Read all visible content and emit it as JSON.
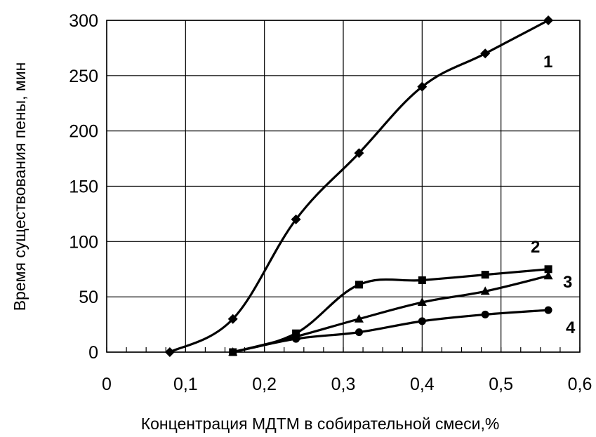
{
  "chart_data": {
    "type": "line",
    "title": "",
    "xlabel": "Концентрация МДТМ в собирательной смеси,%",
    "ylabel": "Время существования пены, мин",
    "xlim": [
      0,
      0.6
    ],
    "ylim": [
      0,
      300
    ],
    "x_ticks": [
      "0",
      "0,1",
      "0,2",
      "0,3",
      "0,4",
      "0,5",
      "0,6"
    ],
    "y_ticks": [
      "0",
      "50",
      "100",
      "150",
      "200",
      "250",
      "300"
    ],
    "grid": true,
    "series": [
      {
        "name": "1",
        "marker": "diamond",
        "x": [
          0.08,
          0.16,
          0.24,
          0.32,
          0.4,
          0.48,
          0.56
        ],
        "y": [
          0,
          30,
          120,
          180,
          240,
          270,
          300
        ]
      },
      {
        "name": "2",
        "marker": "square",
        "x": [
          0.16,
          0.24,
          0.32,
          0.4,
          0.48,
          0.56
        ],
        "y": [
          0,
          17,
          61,
          65,
          70,
          75
        ]
      },
      {
        "name": "3",
        "marker": "triangle",
        "x": [
          0.16,
          0.24,
          0.32,
          0.4,
          0.48,
          0.56
        ],
        "y": [
          0,
          14,
          30,
          45,
          55,
          69
        ]
      },
      {
        "name": "4",
        "marker": "circle",
        "x": [
          0.16,
          0.24,
          0.32,
          0.4,
          0.48,
          0.56
        ],
        "y": [
          0,
          12,
          18,
          28,
          34,
          38
        ]
      }
    ],
    "colors": {
      "line": "#000000",
      "grid": "#000000",
      "background": "#ffffff"
    }
  }
}
